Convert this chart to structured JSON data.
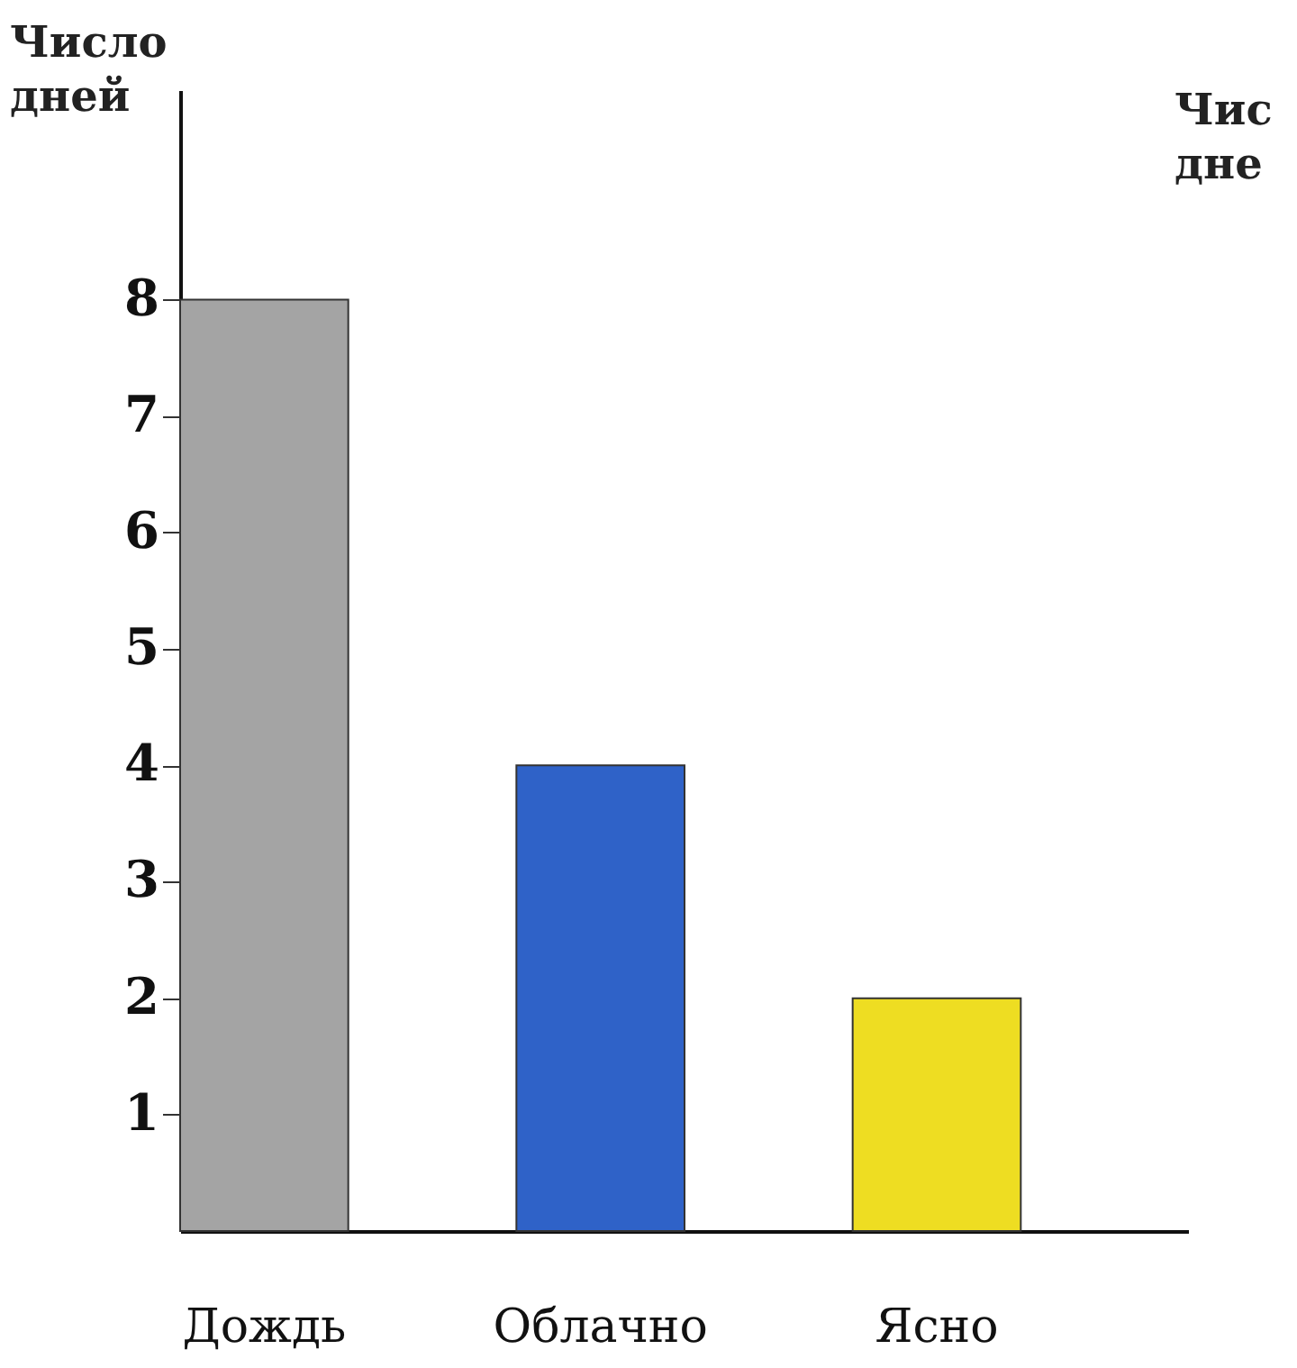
{
  "chart_data": {
    "type": "bar",
    "ylabel": "Число дней",
    "categories": [
      "Дождь",
      "Облачно",
      "Ясно"
    ],
    "values": [
      8,
      4,
      2
    ],
    "colors": [
      "#a4a4a4",
      "#2f62c8",
      "#eedd22"
    ],
    "ylim": [
      0,
      9.8
    ],
    "yticks": [
      1,
      2,
      3,
      4,
      5,
      6,
      7,
      8
    ],
    "grid": false,
    "annotations": [
      "Чис дне"
    ]
  }
}
